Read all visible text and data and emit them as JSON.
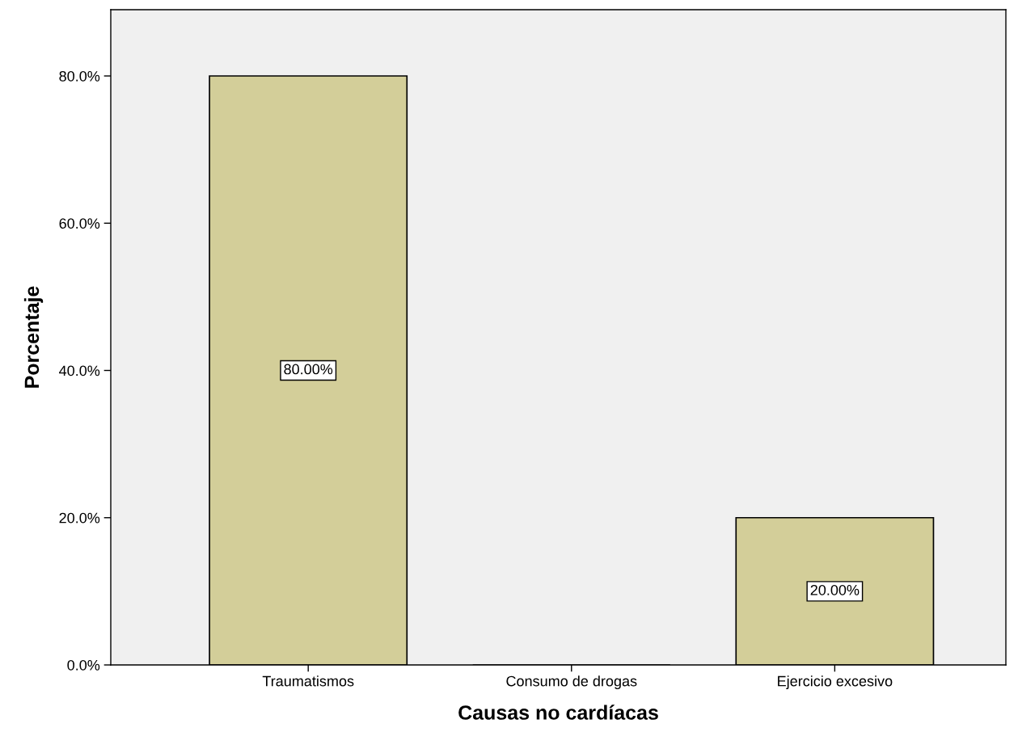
{
  "chart_data": {
    "type": "bar",
    "xlabel": "Causas no cardíacas",
    "ylabel": "Porcentaje",
    "categories": [
      "Traumatismos",
      "Consumo de drogas",
      "Ejercicio excesivo"
    ],
    "values": [
      80,
      0,
      20
    ],
    "value_labels": [
      "80.00%",
      null,
      "20.00%"
    ],
    "color": "#d3ce99",
    "ylim": [
      0,
      89
    ],
    "yticks": [
      {
        "value": 0,
        "label": "0.0%"
      },
      {
        "value": 20,
        "label": "20.0%"
      },
      {
        "value": 40,
        "label": "40.0%"
      },
      {
        "value": 60,
        "label": "60.0%"
      },
      {
        "value": 80,
        "label": "80.0%"
      }
    ],
    "grid": false
  }
}
